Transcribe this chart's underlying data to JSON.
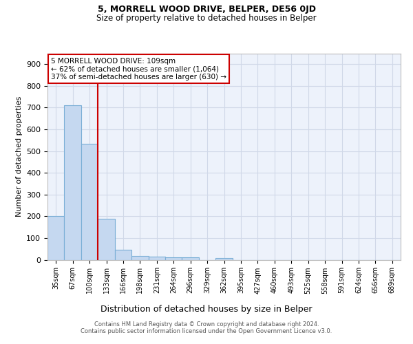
{
  "title": "5, MORRELL WOOD DRIVE, BELPER, DE56 0JD",
  "subtitle": "Size of property relative to detached houses in Belper",
  "xlabel": "Distribution of detached houses by size in Belper",
  "ylabel": "Number of detached properties",
  "bin_labels": [
    "35sqm",
    "67sqm",
    "100sqm",
    "133sqm",
    "166sqm",
    "198sqm",
    "231sqm",
    "264sqm",
    "296sqm",
    "329sqm",
    "362sqm",
    "395sqm",
    "427sqm",
    "460sqm",
    "493sqm",
    "525sqm",
    "558sqm",
    "591sqm",
    "624sqm",
    "656sqm",
    "689sqm"
  ],
  "bar_values": [
    200,
    710,
    535,
    190,
    45,
    18,
    13,
    11,
    10,
    0,
    9,
    0,
    0,
    0,
    0,
    0,
    0,
    0,
    0,
    0,
    0
  ],
  "bar_color": "#c5d8f0",
  "bar_edge_color": "#7aaed6",
  "grid_color": "#d0d8e8",
  "bg_color": "#edf2fb",
  "annotation_text": "5 MORRELL WOOD DRIVE: 109sqm\n← 62% of detached houses are smaller (1,064)\n37% of semi-detached houses are larger (630) →",
  "annotation_box_color": "#ffffff",
  "annotation_text_color": "#000000",
  "red_line_color": "#cc0000",
  "ylim": [
    0,
    950
  ],
  "yticks": [
    0,
    100,
    200,
    300,
    400,
    500,
    600,
    700,
    800,
    900
  ],
  "footer_line1": "Contains HM Land Registry data © Crown copyright and database right 2024.",
  "footer_line2": "Contains public sector information licensed under the Open Government Licence v3.0."
}
